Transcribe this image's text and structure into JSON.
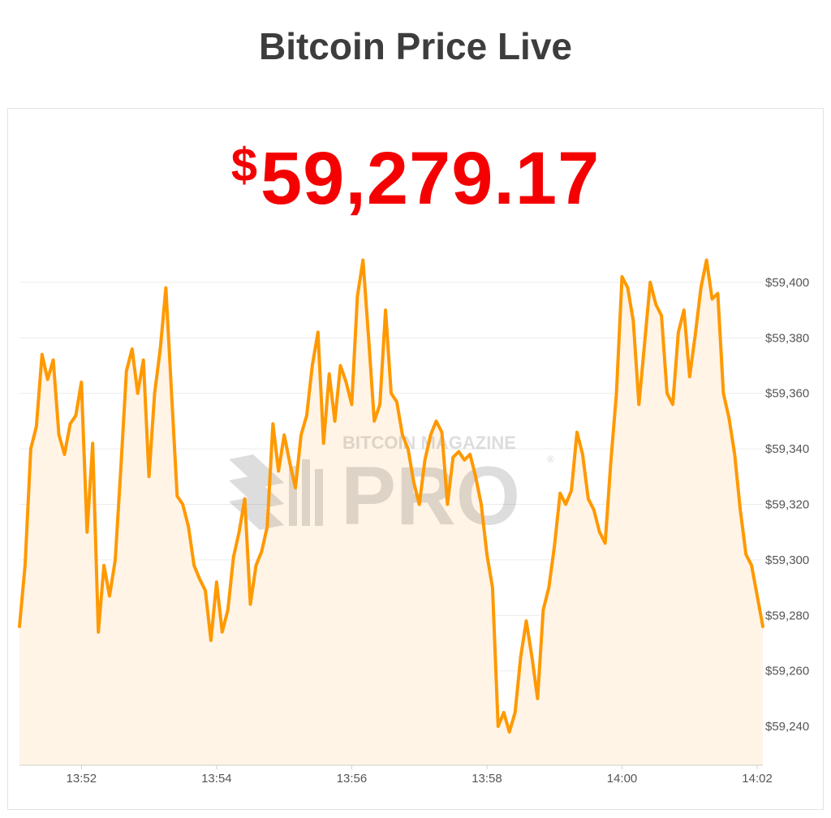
{
  "header": {
    "title": "Bitcoin Price Live"
  },
  "price": {
    "currency_symbol": "$",
    "value": "59,279.17"
  },
  "colors": {
    "line": "#ff9900",
    "area": "#fff4e6",
    "price": "#f40000",
    "grid": "#ececec",
    "title": "#3d3d3d"
  },
  "watermark": {
    "top": "BITCOIN MAGAZINE",
    "main": "PRO",
    "registered": "®"
  },
  "chart_data": {
    "type": "area",
    "x_unit": "time",
    "xlim": [
      "13:51:05",
      "14:02:05"
    ],
    "ylim": [
      59226,
      59414
    ],
    "grid": true,
    "xticks": [
      "13:52",
      "13:54",
      "13:56",
      "13:58",
      "14:00",
      "14:02"
    ],
    "yticks": [
      "$59,240",
      "$59,260",
      "$59,280",
      "$59,300",
      "$59,320",
      "$59,340",
      "$59,360",
      "$59,380",
      "$59,400"
    ],
    "x": [
      "13:51:05",
      "13:51:10",
      "13:51:15",
      "13:51:20",
      "13:51:25",
      "13:51:30",
      "13:51:35",
      "13:51:40",
      "13:51:45",
      "13:51:50",
      "13:51:55",
      "13:52:00",
      "13:52:05",
      "13:52:10",
      "13:52:15",
      "13:52:20",
      "13:52:25",
      "13:52:30",
      "13:52:35",
      "13:52:40",
      "13:52:45",
      "13:52:50",
      "13:52:55",
      "13:53:00",
      "13:53:05",
      "13:53:10",
      "13:53:15",
      "13:53:20",
      "13:53:25",
      "13:53:30",
      "13:53:35",
      "13:53:40",
      "13:53:45",
      "13:53:50",
      "13:53:55",
      "13:54:00",
      "13:54:05",
      "13:54:10",
      "13:54:15",
      "13:54:20",
      "13:54:25",
      "13:54:30",
      "13:54:35",
      "13:54:40",
      "13:54:45",
      "13:54:50",
      "13:54:55",
      "13:55:00",
      "13:55:05",
      "13:55:10",
      "13:55:15",
      "13:55:20",
      "13:55:25",
      "13:55:30",
      "13:55:35",
      "13:55:40",
      "13:55:45",
      "13:55:50",
      "13:55:55",
      "13:56:00",
      "13:56:05",
      "13:56:10",
      "13:56:15",
      "13:56:20",
      "13:56:25",
      "13:56:30",
      "13:56:35",
      "13:56:40",
      "13:56:45",
      "13:56:50",
      "13:56:55",
      "13:57:00",
      "13:57:05",
      "13:57:10",
      "13:57:15",
      "13:57:20",
      "13:57:25",
      "13:57:30",
      "13:57:35",
      "13:57:40",
      "13:57:45",
      "13:57:50",
      "13:57:55",
      "13:58:00",
      "13:58:05",
      "13:58:10",
      "13:58:15",
      "13:58:20",
      "13:58:25",
      "13:58:30",
      "13:58:35",
      "13:58:40",
      "13:58:45",
      "13:58:50",
      "13:58:55",
      "13:59:00",
      "13:59:05",
      "13:59:10",
      "13:59:15",
      "13:59:20",
      "13:59:25",
      "13:59:30",
      "13:59:35",
      "13:59:40",
      "13:59:45",
      "13:59:50",
      "13:59:55",
      "14:00:00",
      "14:00:05",
      "14:00:10",
      "14:00:15",
      "14:00:20",
      "14:00:25",
      "14:00:30",
      "14:00:35",
      "14:00:40",
      "14:00:45",
      "14:00:50",
      "14:00:55",
      "14:01:00",
      "14:01:05",
      "14:01:10",
      "14:01:15",
      "14:01:20",
      "14:01:25",
      "14:01:30",
      "14:01:35",
      "14:01:40",
      "14:01:45",
      "14:01:50",
      "14:01:55",
      "14:02:00",
      "14:02:05"
    ],
    "series": [
      {
        "values": [
          59276,
          59298,
          59340,
          59348,
          59374,
          59365,
          59372,
          59345,
          59338,
          59349,
          59352,
          59364,
          59310,
          59342,
          59274,
          59298,
          59287,
          59300,
          59333,
          59368,
          59376,
          59360,
          59372,
          59330,
          59360,
          59376,
          59398,
          59360,
          59323,
          59320,
          59312,
          59298,
          59293,
          59289,
          59271,
          59292,
          59274,
          59282,
          59301,
          59310,
          59322,
          59284,
          59298,
          59303,
          59312,
          59349,
          59332,
          59345,
          59335,
          59326,
          59345,
          59352,
          59370,
          59382,
          59342,
          59367,
          59350,
          59370,
          59364,
          59356,
          59395,
          59408,
          59380,
          59350,
          59356,
          59390,
          59360,
          59357,
          59345,
          59340,
          59328,
          59320,
          59336,
          59345,
          59350,
          59346,
          59320,
          59337,
          59339,
          59336,
          59338,
          59330,
          59320,
          59302,
          59290,
          59240,
          59245,
          59238,
          59245,
          59265,
          59278,
          59265,
          59250,
          59282,
          59290,
          59305,
          59324,
          59320,
          59325,
          59346,
          59338,
          59322,
          59318,
          59310,
          59306,
          59335,
          59360,
          59402,
          59398,
          59386,
          59356,
          59378,
          59400,
          59392,
          59388,
          59360,
          59356,
          59382,
          59390,
          59366,
          59381,
          59398,
          59408,
          59394,
          59396,
          59360,
          59351,
          59338,
          59318,
          59302,
          59298,
          59287,
          59276
        ]
      }
    ]
  }
}
